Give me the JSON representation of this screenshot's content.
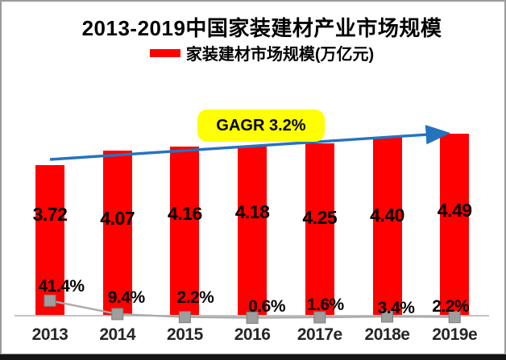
{
  "title": "2013-2019中国家装建材产业市场规模",
  "legend": {
    "label": "家装建材市场规模(万亿元)"
  },
  "annotation": {
    "label": "GAGR 3.2%"
  },
  "colors": {
    "bar": "#fe0000",
    "annotation_bg": "#ffff00",
    "trend_arrow": "#2573be",
    "growth_line": "#ababab",
    "marker_fill": "#9e9e9e",
    "marker_stroke": "#7c7c7c",
    "axis": "#c2c2c2",
    "text": "#000000",
    "x_label_text": "#262626"
  },
  "chart_data": {
    "type": "bar",
    "title": "2013-2019中国家装建材产业市场规模",
    "categories": [
      "2013",
      "2014",
      "2015",
      "2016",
      "2017e",
      "2018e",
      "2019e"
    ],
    "series": [
      {
        "name": "家装建材市场规模(万亿元)",
        "type": "bar",
        "unit": "万亿元",
        "values": [
          3.72,
          4.07,
          4.16,
          4.18,
          4.25,
          4.4,
          4.49
        ],
        "labels": [
          "3.72",
          "4.07",
          "4.16",
          "4.18",
          "4.25",
          "4.40",
          "4.49"
        ],
        "color": "#fe0000"
      },
      {
        "type": "line",
        "role": "growth-rate-percent",
        "values": [
          41.4,
          9.4,
          2.2,
          0.6,
          1.6,
          3.4,
          2.2
        ],
        "labels": [
          "41.4%",
          "9.4%",
          "2.2%",
          "0.6%",
          "1.6%",
          "3.4%",
          "2.2%"
        ],
        "marker": "square",
        "color": "#ababab"
      }
    ],
    "annotations": [
      {
        "text": "GAGR 3.2%",
        "shape": "rounded-rect",
        "bg": "#ffff00"
      }
    ],
    "trendline": {
      "style": "arrow",
      "color": "#2573be",
      "direction": "up-right"
    },
    "legend_position": "top",
    "grid": false,
    "ylim": [
      0,
      4.8
    ]
  }
}
